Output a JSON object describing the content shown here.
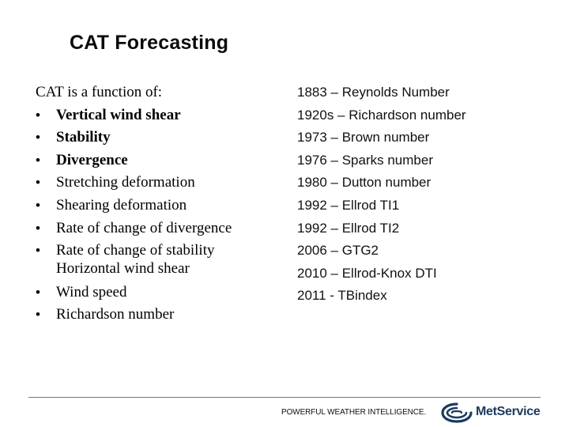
{
  "slide": {
    "title": "CAT Forecasting"
  },
  "left": {
    "intro": "CAT  is a function of:",
    "bullet_glyph": "•",
    "items": [
      {
        "text": "Vertical wind shear",
        "bold": true
      },
      {
        "text": "Stability",
        "bold": true
      },
      {
        "text": "Divergence",
        "bold": true
      },
      {
        "text": "Stretching deformation",
        "bold": false
      },
      {
        "text": "Shearing deformation",
        "bold": false
      },
      {
        "text": "Rate of change of divergence",
        "bold": false
      },
      {
        "text": "Rate of change of stability",
        "bold": false,
        "continuation": "Horizontal wind shear"
      },
      {
        "text": "Wind speed",
        "bold": false
      },
      {
        "text": "Richardson number",
        "bold": false
      }
    ]
  },
  "right": {
    "items": [
      "1883 – Reynolds Number",
      "1920s – Richardson number",
      "1973 – Brown number",
      "1976 – Sparks number",
      "1980 – Dutton number",
      "1992 – Ellrod TI1",
      "1992 – Ellrod TI2",
      "2006 – GTG2",
      "2010 – Ellrod-Knox DTI",
      "2011 - TBindex"
    ]
  },
  "footer": {
    "tagline": "POWERFUL WEATHER INTELLIGENCE.",
    "brand": "MetService",
    "logo_icon": "metservice-swirl-icon",
    "brand_color": "#1c3a5e"
  }
}
